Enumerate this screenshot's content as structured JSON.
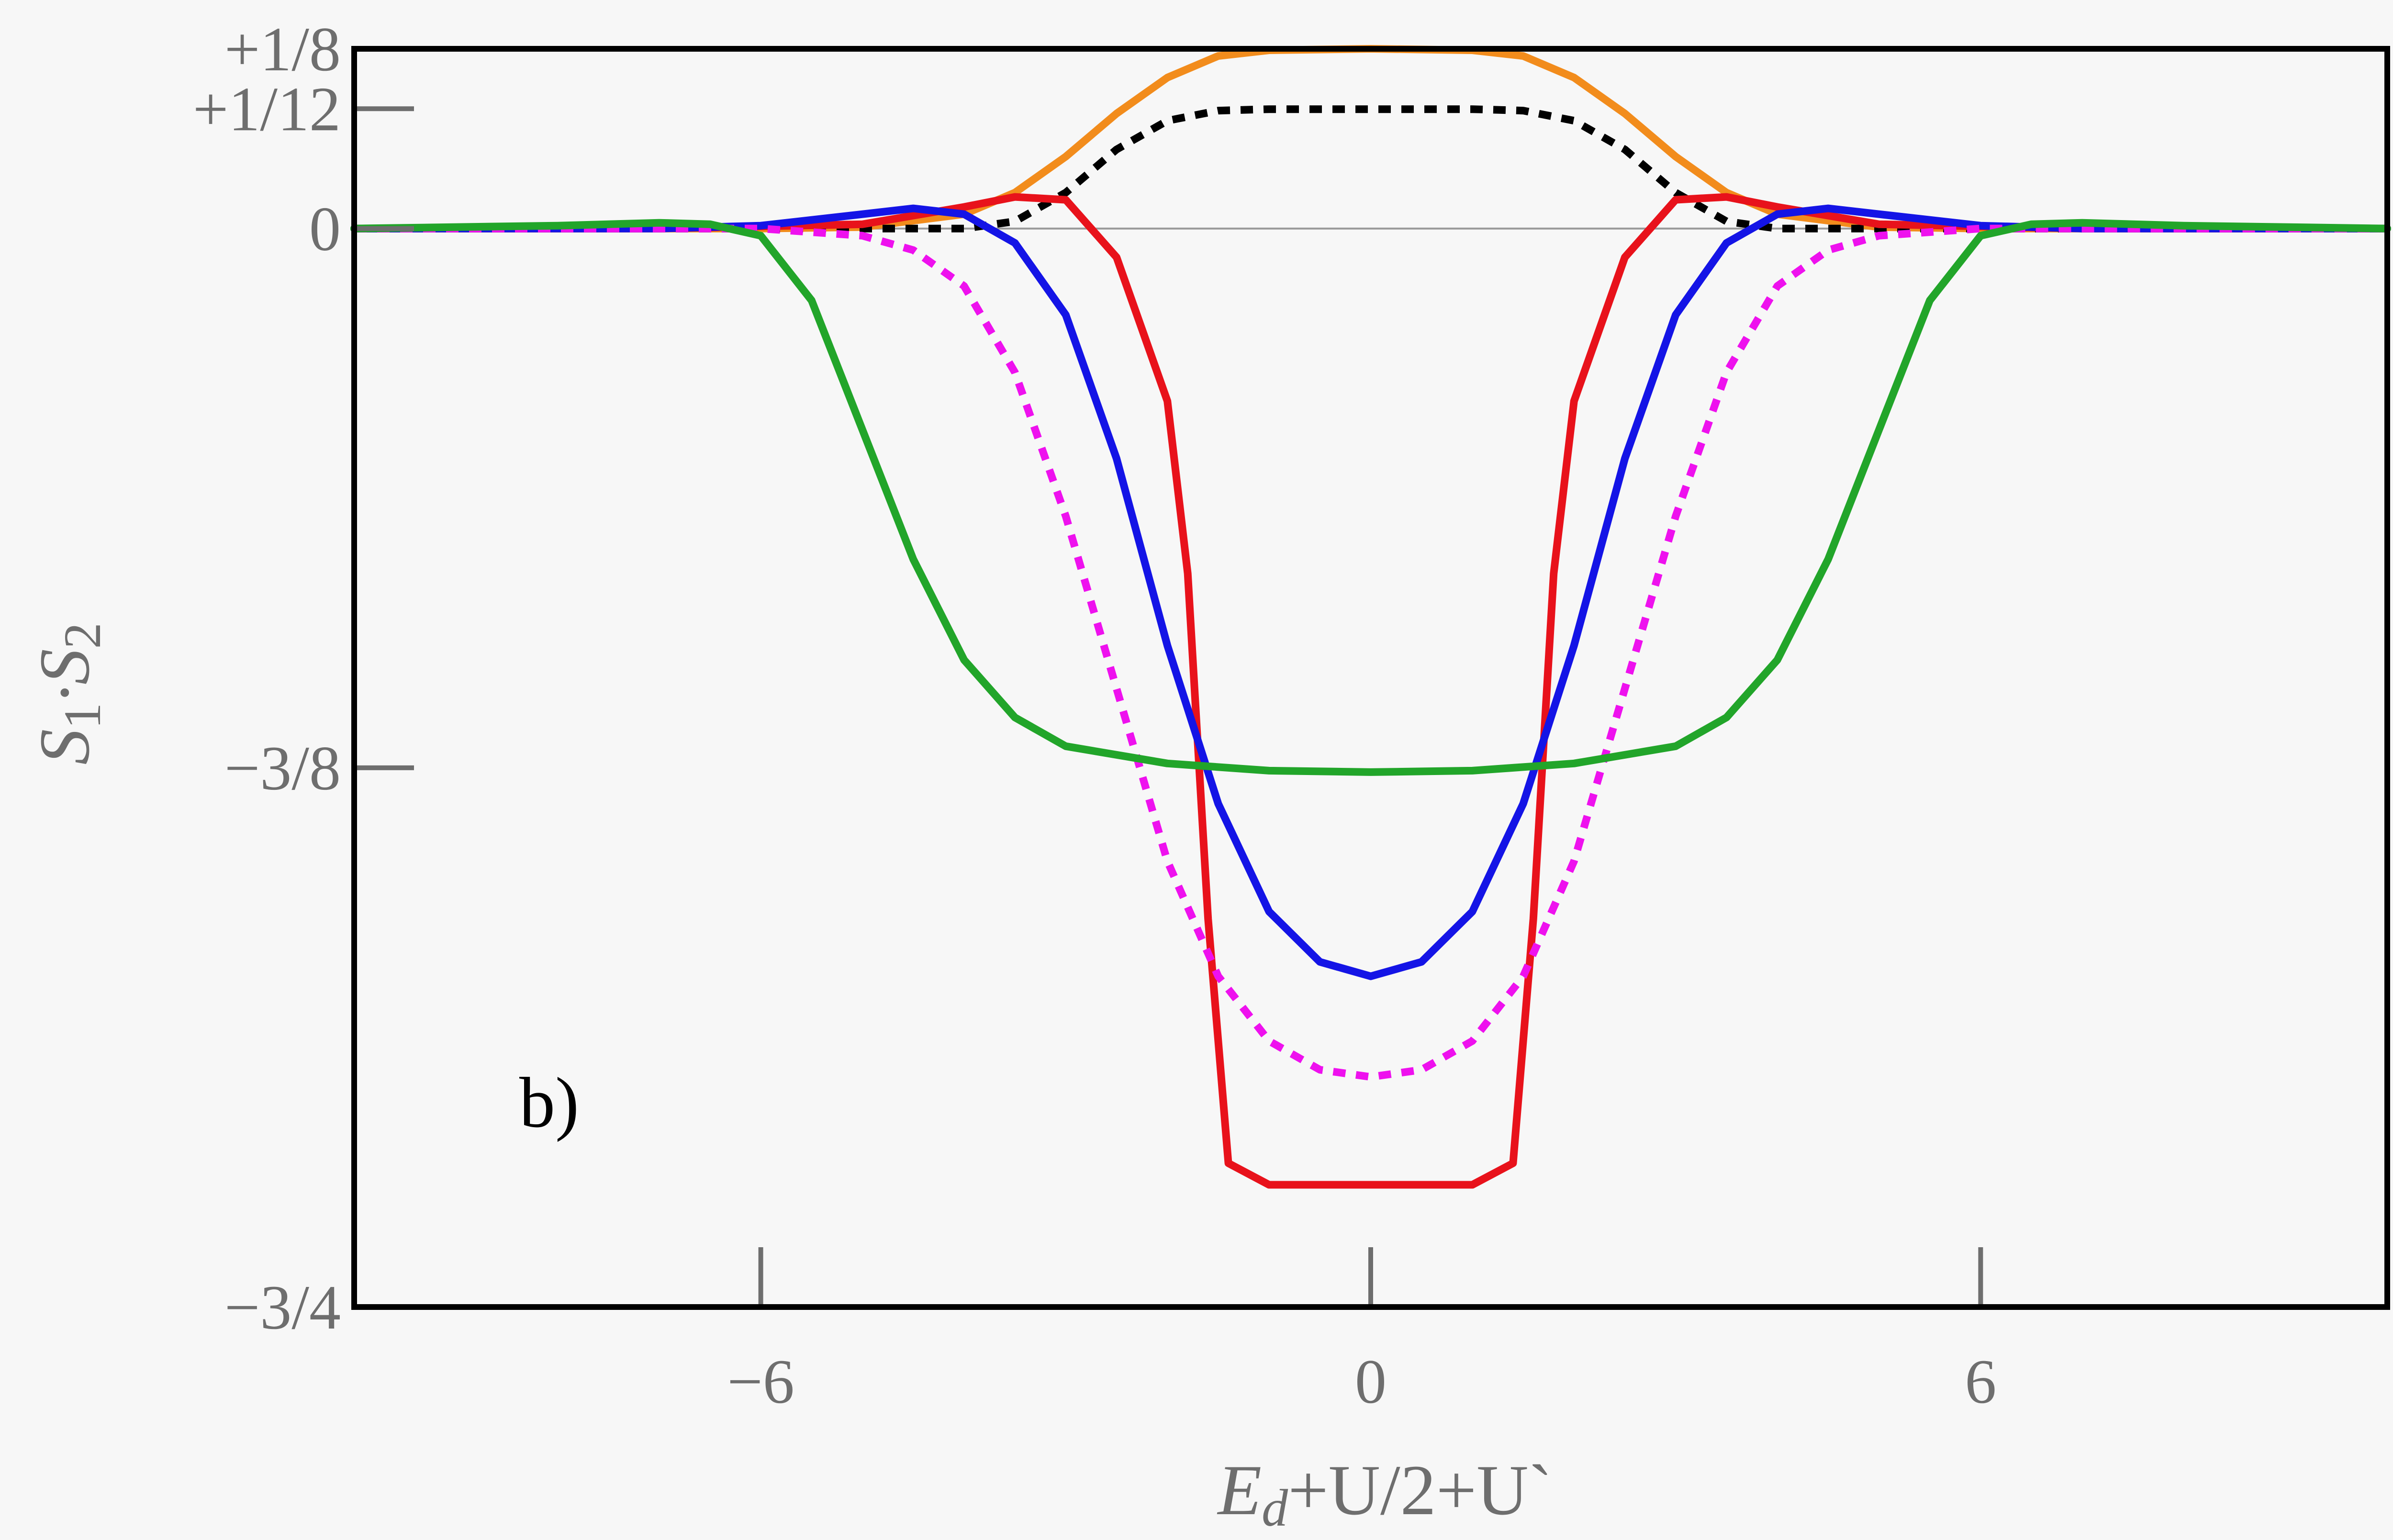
{
  "chart_data": {
    "type": "line",
    "panel_label": "b)",
    "xlabel_parts": [
      "E",
      "d",
      "+U/2+U`"
    ],
    "ylabel_parts": [
      "S",
      "1",
      "·S",
      "2"
    ],
    "xlim": [
      -10,
      10
    ],
    "ylim": [
      -0.75,
      0.125
    ],
    "x_ticks": [
      {
        "value": -6,
        "label": "−6"
      },
      {
        "value": 0,
        "label": "0"
      },
      {
        "value": 6,
        "label": "6"
      }
    ],
    "y_ticks": [
      {
        "value": 0.125,
        "label": "+1/8"
      },
      {
        "value": 0.08333,
        "label": "+1/12"
      },
      {
        "value": 0,
        "label": "0"
      },
      {
        "value": -0.375,
        "label": "−3/8"
      },
      {
        "value": -0.75,
        "label": "−3/4"
      }
    ],
    "zero_line": true,
    "grid": false,
    "series": [
      {
        "color": "#f28c1c",
        "style": "solid",
        "x": [
          -10,
          -6,
          -5,
          -4,
          -3.5,
          -3,
          -2.5,
          -2,
          -1.5,
          -1,
          0,
          1,
          1.5,
          2,
          2.5,
          3,
          3.5,
          4,
          5,
          6,
          10
        ],
        "y": [
          0,
          0,
          0.001,
          0.01,
          0.025,
          0.05,
          0.08,
          0.105,
          0.12,
          0.124,
          0.125,
          0.124,
          0.12,
          0.105,
          0.08,
          0.05,
          0.025,
          0.01,
          0.001,
          0,
          0
        ]
      },
      {
        "color": "#000000",
        "style": "dotted",
        "x": [
          -10,
          -5,
          -4,
          -3.5,
          -3,
          -2.5,
          -2,
          -1.5,
          -1,
          0,
          1,
          1.5,
          2,
          2.5,
          3,
          3.5,
          4,
          5,
          10
        ],
        "y": [
          0,
          0,
          0,
          0.005,
          0.025,
          0.055,
          0.075,
          0.082,
          0.083,
          0.083,
          0.083,
          0.082,
          0.075,
          0.055,
          0.025,
          0.005,
          0,
          0,
          0
        ]
      },
      {
        "color": "#e8121b",
        "style": "solid",
        "x": [
          -10,
          -7,
          -5,
          -4,
          -3.5,
          -3,
          -2.5,
          -2.3,
          -2.0,
          -1.8,
          -1.6,
          -1.4,
          -1,
          0,
          1,
          1.4,
          1.6,
          1.8,
          2.0,
          2.3,
          2.5,
          3,
          3.5,
          4,
          5,
          7,
          10
        ],
        "y": [
          0,
          0,
          0.003,
          0.015,
          0.022,
          0.02,
          -0.02,
          -0.06,
          -0.12,
          -0.24,
          -0.48,
          -0.65,
          -0.665,
          -0.665,
          -0.665,
          -0.65,
          -0.48,
          -0.24,
          -0.12,
          -0.06,
          -0.02,
          0.02,
          0.022,
          0.015,
          0.003,
          0,
          0
        ]
      },
      {
        "color": "#1414e6",
        "style": "solid",
        "x": [
          -10,
          -7,
          -6,
          -5,
          -4.5,
          -4,
          -3.5,
          -3,
          -2.5,
          -2,
          -1.5,
          -1,
          -0.5,
          0,
          0.5,
          1,
          1.5,
          2,
          2.5,
          3,
          3.5,
          4,
          4.5,
          5,
          6,
          7,
          10
        ],
        "y": [
          0,
          0,
          0.002,
          0.01,
          0.014,
          0.01,
          -0.01,
          -0.06,
          -0.16,
          -0.29,
          -0.4,
          -0.475,
          -0.51,
          -0.52,
          -0.51,
          -0.475,
          -0.4,
          -0.29,
          -0.16,
          -0.06,
          -0.01,
          0.01,
          0.014,
          0.01,
          0.002,
          0,
          0
        ]
      },
      {
        "color": "#ee11ee",
        "style": "dotted",
        "x": [
          -10,
          -6,
          -5,
          -4.5,
          -4,
          -3.5,
          -3,
          -2.5,
          -2,
          -1.5,
          -1,
          -0.5,
          0,
          0.5,
          1,
          1.5,
          2,
          2.5,
          3,
          3.5,
          4,
          4.5,
          5,
          6,
          10
        ],
        "y": [
          0,
          0,
          -0.005,
          -0.015,
          -0.04,
          -0.1,
          -0.2,
          -0.32,
          -0.44,
          -0.52,
          -0.565,
          -0.585,
          -0.59,
          -0.585,
          -0.565,
          -0.52,
          -0.44,
          -0.32,
          -0.2,
          -0.1,
          -0.04,
          -0.015,
          -0.005,
          0,
          0
        ]
      },
      {
        "color": "#22a52a",
        "style": "solid",
        "x": [
          -10,
          -8,
          -7,
          -6.5,
          -6,
          -5.5,
          -5,
          -4.5,
          -4,
          -3.5,
          -3,
          -2,
          -1,
          0,
          1,
          2,
          3,
          3.5,
          4,
          4.5,
          5,
          5.5,
          6,
          6.5,
          7,
          8,
          10
        ],
        "y": [
          0,
          0.002,
          0.004,
          0.003,
          -0.005,
          -0.05,
          -0.14,
          -0.23,
          -0.3,
          -0.34,
          -0.36,
          -0.372,
          -0.377,
          -0.378,
          -0.377,
          -0.372,
          -0.36,
          -0.34,
          -0.3,
          -0.23,
          -0.14,
          -0.05,
          -0.005,
          0.003,
          0.004,
          0.002,
          0
        ]
      }
    ]
  }
}
